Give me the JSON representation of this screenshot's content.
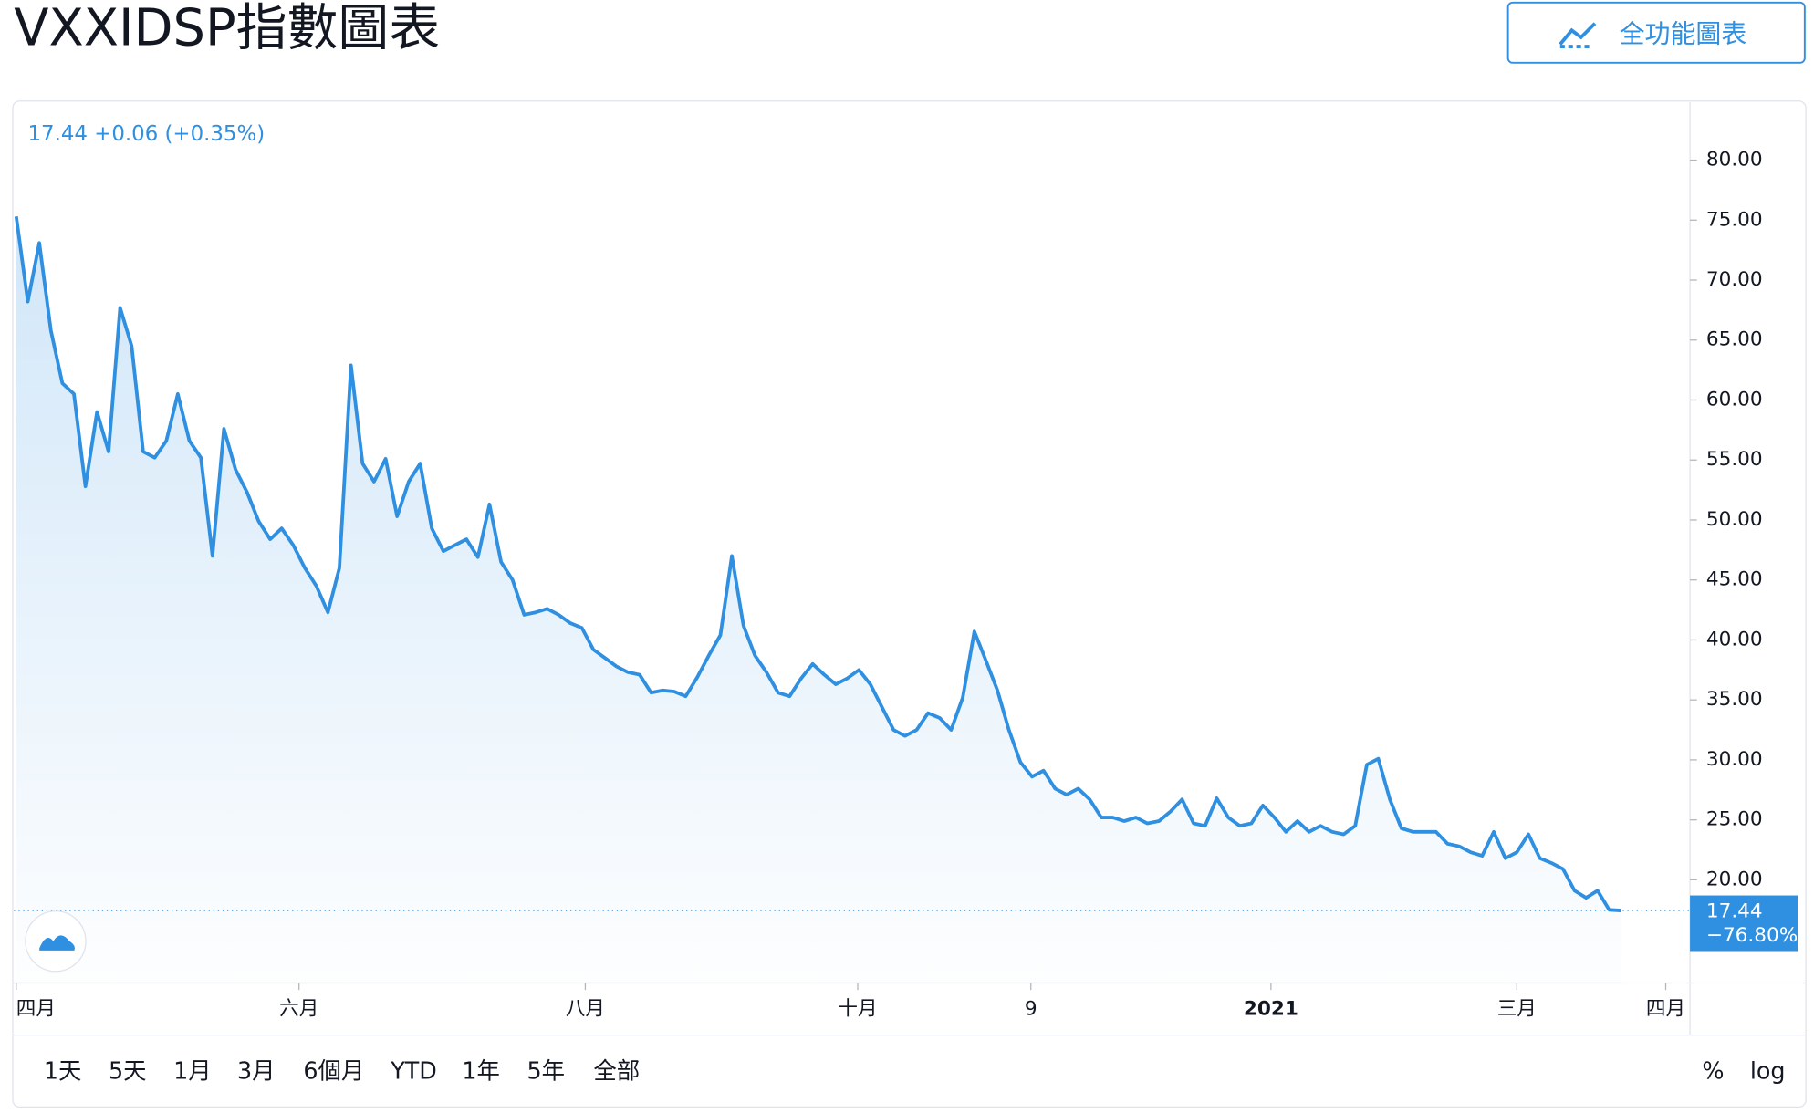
{
  "chart_data": {
    "type": "line",
    "area": true,
    "color": "#2f8fe0",
    "title": "VXXIDSP指數圖表",
    "full_chart_button": "全功能圖表",
    "quote": "17.44 +0.06 (+0.35%)",
    "change_label": "−76.80%",
    "values": [
      75.3,
      68.2,
      73.1,
      65.8,
      61.4,
      60.5,
      52.8,
      59,
      55.7,
      67.7,
      64.5,
      55.7,
      55.2,
      56.6,
      60.5,
      56.6,
      55.2,
      47,
      57.6,
      54.2,
      52.3,
      49.9,
      48.4,
      49.3,
      47.9,
      46,
      44.5,
      42.3,
      46,
      62.9,
      54.7,
      53.2,
      55.1,
      50.3,
      53.2,
      54.7,
      49.3,
      47.4,
      47.9,
      48.4,
      46.9,
      51.3,
      46.5,
      45,
      42.1,
      42.3,
      42.6,
      42.1,
      41.4,
      41,
      39.2,
      38.5,
      37.8,
      37.3,
      37.1,
      35.6,
      35.8,
      35.7,
      35.3,
      36.9,
      38.7,
      40.4,
      47,
      41.2,
      38.7,
      37.3,
      35.6,
      35.3,
      36.8,
      38,
      37.1,
      36.3,
      36.8,
      37.5,
      36.3,
      34.4,
      32.5,
      32,
      32.5,
      33.9,
      33.5,
      32.5,
      35.2,
      40.7,
      38.3,
      35.8,
      32.5,
      29.8,
      28.6,
      29.1,
      27.6,
      27.1,
      27.6,
      26.7,
      25.2,
      25.2,
      24.9,
      25.2,
      24.7,
      24.9,
      25.7,
      26.7,
      24.7,
      24.5,
      26.8,
      25.2,
      24.5,
      24.7,
      26.2,
      25.2,
      24,
      24.9,
      24,
      24.5,
      24,
      23.8,
      24.5,
      29.6,
      30.1,
      26.7,
      24.3,
      24,
      24,
      24,
      23,
      22.8,
      22.3,
      22,
      24,
      21.8,
      22.3,
      23.8,
      21.8,
      21.4,
      20.9,
      19.1,
      18.5,
      19.1,
      17.5,
      17.44
    ],
    "xlim": [
      -0.2,
      145
    ],
    "xticks": [
      {
        "value": 0,
        "label": "四月"
      },
      {
        "value": 24.5,
        "label": "六月"
      },
      {
        "value": 49.3,
        "label": "八月"
      },
      {
        "value": 72.9,
        "label": "十月"
      },
      {
        "value": 87.9,
        "label": "9"
      },
      {
        "value": 108.7,
        "label": "2021"
      },
      {
        "value": 130,
        "label": "三月"
      },
      {
        "value": 142.9,
        "label": "四月"
      }
    ],
    "ylim": [
      11.4,
      84.83
    ],
    "yticks": [
      {
        "value": 20,
        "label": "20.00"
      },
      {
        "value": 25,
        "label": "25.00"
      },
      {
        "value": 30,
        "label": "30.00"
      },
      {
        "value": 35,
        "label": "35.00"
      },
      {
        "value": 40,
        "label": "40.00"
      },
      {
        "value": 45,
        "label": "45.00"
      },
      {
        "value": 50,
        "label": "50.00"
      },
      {
        "value": 55,
        "label": "55.00"
      },
      {
        "value": 60,
        "label": "60.00"
      },
      {
        "value": 65,
        "label": "65.00"
      },
      {
        "value": 70,
        "label": "70.00"
      },
      {
        "value": 75,
        "label": "75.00"
      },
      {
        "value": 80,
        "label": "80.00"
      }
    ],
    "range_buttons": [
      "1天",
      "5天",
      "1月",
      "3月",
      "6個月",
      "YTD",
      "1年",
      "5年",
      "全部"
    ],
    "scale_buttons": [
      "%",
      "log"
    ]
  }
}
